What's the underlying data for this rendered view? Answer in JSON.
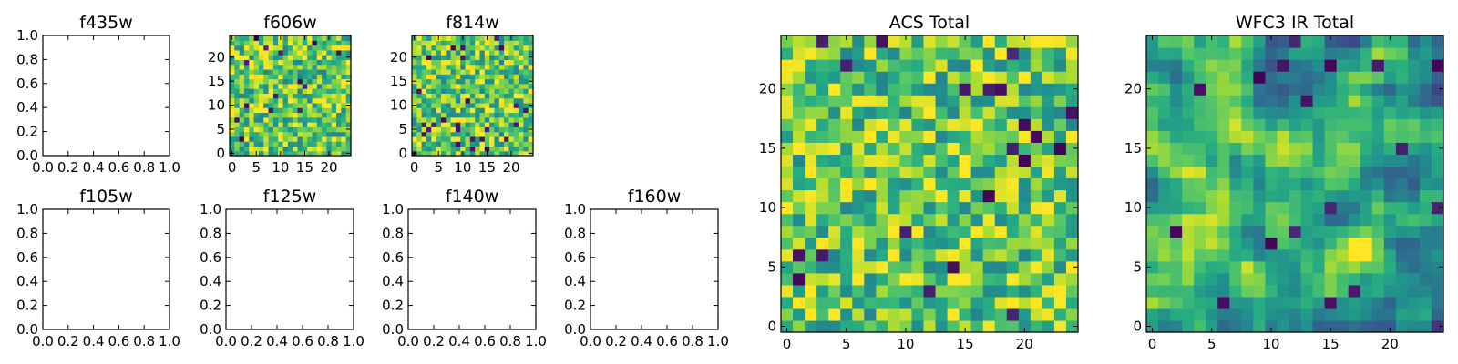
{
  "figure": {
    "panels": [
      {
        "title": "f435w",
        "kind": "empty",
        "xticks": [
          "0.0",
          "0.2",
          "0.4",
          "0.6",
          "0.8",
          "1.0"
        ],
        "yticks": [
          "0.0",
          "0.2",
          "0.4",
          "0.6",
          "0.8",
          "1.0"
        ]
      },
      {
        "title": "f606w",
        "kind": "heatmap",
        "seed": 11,
        "xticks": [
          "0",
          "5",
          "10",
          "15",
          "20"
        ],
        "yticks": [
          "0",
          "5",
          "10",
          "15",
          "20"
        ]
      },
      {
        "title": "f814w",
        "kind": "heatmap",
        "seed": 23,
        "xticks": [
          "0",
          "5",
          "10",
          "15",
          "20"
        ],
        "yticks": [
          "0",
          "5",
          "10",
          "15",
          "20"
        ]
      },
      {
        "title": "f105w",
        "kind": "empty",
        "xticks": [
          "0.0",
          "0.2",
          "0.4",
          "0.6",
          "0.8",
          "1.0"
        ],
        "yticks": [
          "0.0",
          "0.2",
          "0.4",
          "0.6",
          "0.8",
          "1.0"
        ]
      },
      {
        "title": "f125w",
        "kind": "empty",
        "xticks": [
          "0.0",
          "0.2",
          "0.4",
          "0.6",
          "0.8",
          "1.0"
        ],
        "yticks": [
          "0.0",
          "0.2",
          "0.4",
          "0.6",
          "0.8",
          "1.0"
        ]
      },
      {
        "title": "f140w",
        "kind": "empty",
        "xticks": [
          "0.0",
          "0.2",
          "0.4",
          "0.6",
          "0.8",
          "1.0"
        ],
        "yticks": [
          "0.0",
          "0.2",
          "0.4",
          "0.6",
          "0.8",
          "1.0"
        ]
      },
      {
        "title": "f160w",
        "kind": "empty",
        "xticks": [
          "0.0",
          "0.2",
          "0.4",
          "0.6",
          "0.8",
          "1.0"
        ],
        "yticks": [
          "0.0",
          "0.2",
          "0.4",
          "0.6",
          "0.8",
          "1.0"
        ]
      },
      {
        "title": "ACS Total",
        "kind": "heatmap",
        "seed": 37,
        "xticks": [
          "0",
          "5",
          "10",
          "15",
          "20"
        ],
        "yticks": [
          "0",
          "5",
          "10",
          "15",
          "20"
        ]
      },
      {
        "title": "WFC3 IR Total",
        "kind": "heatmap",
        "seed": 53,
        "smooth": true,
        "xticks": [
          "0",
          "5",
          "10",
          "15",
          "20"
        ],
        "yticks": [
          "0",
          "5",
          "10",
          "15",
          "20"
        ]
      }
    ]
  },
  "chart_data": [
    {
      "type": "scatter",
      "title": "f435w",
      "xlim": [
        0,
        1
      ],
      "ylim": [
        0,
        1
      ],
      "series": []
    },
    {
      "type": "heatmap",
      "title": "f606w",
      "grid_size": [
        25,
        25
      ],
      "xlim": [
        -0.5,
        24.5
      ],
      "ylim": [
        -0.5,
        24.5
      ],
      "colormap": "viridis"
    },
    {
      "type": "heatmap",
      "title": "f814w",
      "grid_size": [
        25,
        25
      ],
      "xlim": [
        -0.5,
        24.5
      ],
      "ylim": [
        -0.5,
        24.5
      ],
      "colormap": "viridis"
    },
    {
      "type": "scatter",
      "title": "f105w",
      "xlim": [
        0,
        1
      ],
      "ylim": [
        0,
        1
      ],
      "series": []
    },
    {
      "type": "scatter",
      "title": "f125w",
      "xlim": [
        0,
        1
      ],
      "ylim": [
        0,
        1
      ],
      "series": []
    },
    {
      "type": "scatter",
      "title": "f140w",
      "xlim": [
        0,
        1
      ],
      "ylim": [
        0,
        1
      ],
      "series": []
    },
    {
      "type": "scatter",
      "title": "f160w",
      "xlim": [
        0,
        1
      ],
      "ylim": [
        0,
        1
      ],
      "series": []
    },
    {
      "type": "heatmap",
      "title": "ACS Total",
      "grid_size": [
        25,
        25
      ],
      "xlim": [
        -0.5,
        24.5
      ],
      "ylim": [
        -0.5,
        24.5
      ],
      "colormap": "viridis"
    },
    {
      "type": "heatmap",
      "title": "WFC3 IR Total",
      "grid_size": [
        25,
        25
      ],
      "xlim": [
        -0.5,
        24.5
      ],
      "ylim": [
        -0.5,
        24.5
      ],
      "colormap": "viridis"
    }
  ]
}
